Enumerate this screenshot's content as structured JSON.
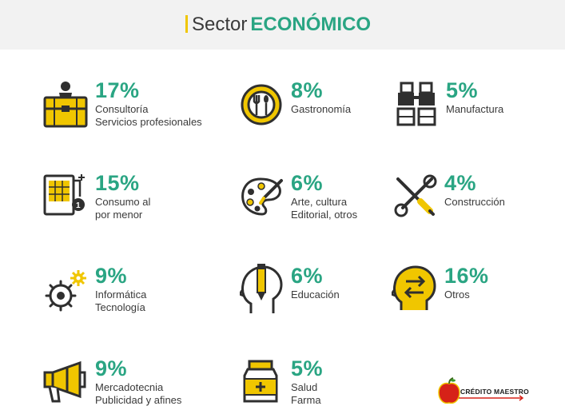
{
  "header": {
    "title_prefix": "Sector",
    "title_emphasis": "ECONÓMICO"
  },
  "colors": {
    "accent_green": "#2aa583",
    "accent_yellow": "#f0c600",
    "icon_dark": "#2f2f2f"
  },
  "sectors": [
    {
      "percent": "17%",
      "line1": "Consultoría",
      "line2": "Servicios profesionales",
      "icon": "briefcase-person-icon"
    },
    {
      "percent": "8%",
      "line1": "Gastronomía",
      "line2": "",
      "icon": "plate-cutlery-icon"
    },
    {
      "percent": "5%",
      "line1": "Manufactura",
      "line2": "",
      "icon": "industrial-machine-icon"
    },
    {
      "percent": "15%",
      "line1": "Consumo al",
      "line2": "por menor",
      "icon": "cash-register-icon"
    },
    {
      "percent": "6%",
      "line1": "Arte, cultura",
      "line2": "Editorial, otros",
      "icon": "palette-icon"
    },
    {
      "percent": "4%",
      "line1": "Construcción",
      "line2": "",
      "icon": "tools-icon"
    },
    {
      "percent": "9%",
      "line1": "Informática",
      "line2": "Tecnología",
      "icon": "gears-icon"
    },
    {
      "percent": "6%",
      "line1": "Educación",
      "line2": "",
      "icon": "head-pencil-icon"
    },
    {
      "percent": "16%",
      "line1": "Otros",
      "line2": "",
      "icon": "head-arrows-icon"
    },
    {
      "percent": "9%",
      "line1": "Mercadotecnia",
      "line2": "Publicidad y afines",
      "icon": "megaphone-icon"
    },
    {
      "percent": "5%",
      "line1": "Salud",
      "line2": "Farma",
      "icon": "medicine-bottle-icon"
    }
  ],
  "logo": {
    "text": "CRÉDITO MAESTRO",
    "icon": "apple-logo-icon"
  }
}
